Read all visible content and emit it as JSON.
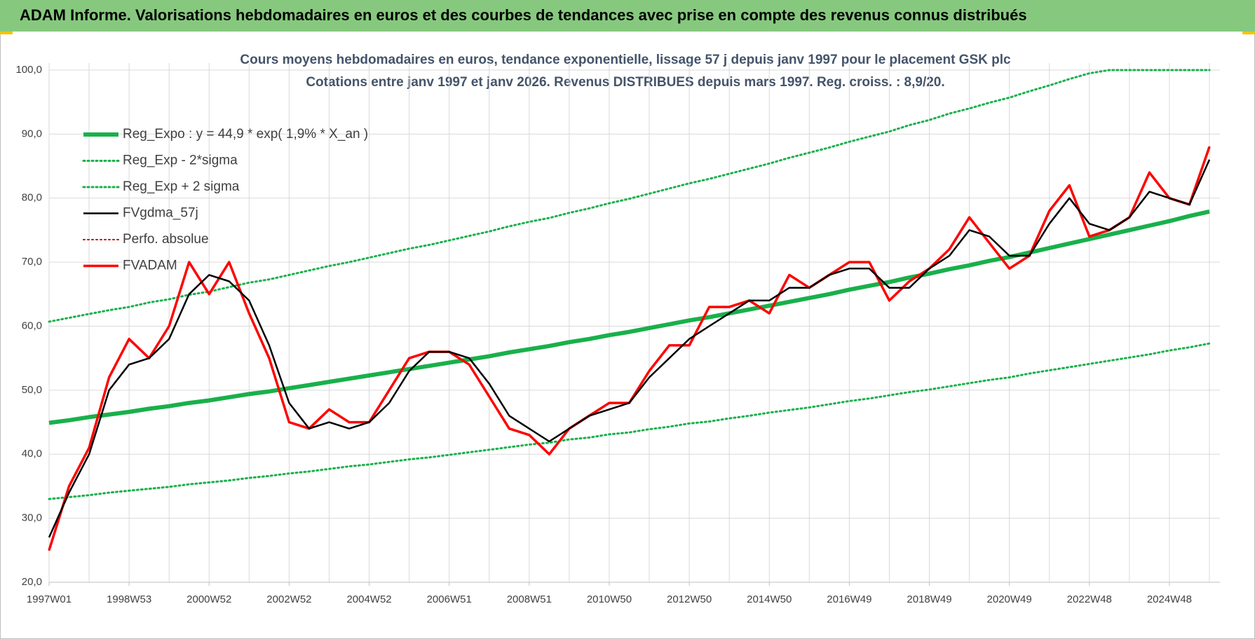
{
  "header": {
    "title": "ADAM Informe. Valorisations hebdomadaires en euros et des courbes de tendances avec prise en compte des revenus connus distribués"
  },
  "chart_data": {
    "type": "line",
    "title": "Cours moyens hebdomadaires en euros, tendance exponentielle, lissage 57 j depuis janv 1997  pour le  placement GSK plc",
    "subtitle": "Cotations entre janv 1997 et janv 2026. Revenus DISTRIBUES depuis mars 1997.  Reg. croiss. : 8,9/20.",
    "categories": [
      "1997W01",
      null,
      null,
      null,
      "1998W53",
      null,
      null,
      null,
      "2000W52",
      null,
      null,
      null,
      "2002W52",
      null,
      null,
      null,
      "2004W52",
      null,
      null,
      null,
      "2006W51",
      null,
      null,
      null,
      "2008W51",
      null,
      null,
      null,
      "2010W50",
      null,
      null,
      null,
      "2012W50",
      null,
      null,
      null,
      "2014W50",
      null,
      null,
      null,
      "2016W49",
      null,
      null,
      null,
      "2018W49",
      null,
      null,
      null,
      "2020W49",
      null,
      null,
      null,
      "2022W48",
      null,
      null,
      null,
      "2024W48",
      null,
      null
    ],
    "ylim": [
      20,
      100
    ],
    "yticks": [
      {
        "value": 20,
        "label": "20,0"
      },
      {
        "value": 30,
        "label": "30,0"
      },
      {
        "value": 40,
        "label": "40,0"
      },
      {
        "value": 50,
        "label": "50,0"
      },
      {
        "value": 60,
        "label": "60,0"
      },
      {
        "value": 70,
        "label": "70,0"
      },
      {
        "value": 80,
        "label": "80,0"
      },
      {
        "value": 90,
        "label": "90,0"
      },
      {
        "value": 100,
        "label": "100,0"
      }
    ],
    "grid": true,
    "legend": "top-left",
    "series": [
      {
        "name": "Reg_Expo : y = 44,9 * exp( 1,9% *  X_an )",
        "color": "#19b04b",
        "style": "solid",
        "values": [
          44.9,
          45.3,
          45.8,
          46.2,
          46.6,
          47.1,
          47.5,
          48.0,
          48.4,
          48.9,
          49.4,
          49.8,
          50.3,
          50.8,
          51.3,
          51.8,
          52.3,
          52.8,
          53.3,
          53.8,
          54.3,
          54.8,
          55.3,
          55.9,
          56.4,
          56.9,
          57.5,
          58.0,
          58.6,
          59.1,
          59.7,
          60.3,
          60.9,
          61.4,
          62.0,
          62.6,
          63.2,
          63.8,
          64.4,
          65.0,
          65.7,
          66.3,
          66.9,
          67.6,
          68.2,
          68.9,
          69.5,
          70.2,
          70.8,
          71.5,
          72.2,
          72.9,
          73.6,
          74.3,
          75.0,
          75.7,
          76.4,
          77.2,
          77.9
        ]
      },
      {
        "name": "Reg_Exp - 2*sigma",
        "color": "#19b04b",
        "style": "dotted",
        "values": [
          33.0,
          33.3,
          33.6,
          34.0,
          34.3,
          34.6,
          34.9,
          35.3,
          35.6,
          35.9,
          36.3,
          36.6,
          37.0,
          37.3,
          37.7,
          38.1,
          38.4,
          38.8,
          39.2,
          39.5,
          39.9,
          40.3,
          40.7,
          41.1,
          41.5,
          41.8,
          42.3,
          42.6,
          43.1,
          43.4,
          43.9,
          44.3,
          44.8,
          45.1,
          45.6,
          46.0,
          46.5,
          46.9,
          47.3,
          47.8,
          48.3,
          48.7,
          49.2,
          49.7,
          50.1,
          50.6,
          51.1,
          51.6,
          52.0,
          52.6,
          53.1,
          53.6,
          54.1,
          54.6,
          55.1,
          55.6,
          56.2,
          56.7,
          57.3
        ]
      },
      {
        "name": "Reg_Exp + 2 sigma",
        "color": "#19b04b",
        "style": "dotted",
        "values": [
          60.7,
          61.3,
          61.9,
          62.5,
          63.0,
          63.7,
          64.2,
          64.9,
          65.4,
          66.1,
          66.8,
          67.3,
          68.0,
          68.7,
          69.4,
          70.0,
          70.7,
          71.4,
          72.1,
          72.7,
          73.4,
          74.1,
          74.8,
          75.6,
          76.3,
          76.9,
          77.7,
          78.4,
          79.2,
          79.9,
          80.7,
          81.5,
          82.3,
          83.0,
          83.8,
          84.6,
          85.4,
          86.3,
          87.1,
          87.9,
          88.8,
          89.6,
          90.4,
          91.4,
          92.2,
          93.2,
          94.0,
          94.9,
          95.7,
          96.7,
          97.6,
          98.6,
          99.5,
          100,
          100,
          100,
          100,
          100,
          100
        ]
      },
      {
        "name": "FVgdma_57j",
        "color": "#000000",
        "style": "solid",
        "values": [
          27,
          34,
          40,
          50,
          54,
          55,
          58,
          65,
          68,
          67,
          64,
          57,
          48,
          44,
          45,
          44,
          45,
          48,
          53,
          56,
          56,
          55,
          51,
          46,
          44,
          42,
          44,
          46,
          47,
          48,
          52,
          55,
          58,
          60,
          62,
          64,
          64,
          66,
          66,
          68,
          69,
          69,
          66,
          66,
          69,
          71,
          75,
          74,
          71,
          71,
          76,
          80,
          76,
          75,
          77,
          81,
          80,
          79,
          86
        ]
      },
      {
        "name": "Perfo. absolue",
        "color": "#c00000",
        "style": "dotted",
        "values": [
          25,
          35,
          41,
          52,
          58,
          55,
          60,
          70,
          65,
          70,
          62,
          55,
          45,
          44,
          47,
          45,
          45,
          50,
          55,
          56,
          56,
          54,
          49,
          44,
          43,
          40,
          44,
          46,
          48,
          48,
          53,
          57,
          57,
          63,
          63,
          64,
          62,
          68,
          66,
          68,
          70,
          70,
          64,
          67,
          69,
          72,
          77,
          73,
          69,
          71,
          78,
          82,
          74,
          75,
          77,
          84,
          80,
          79,
          88
        ]
      },
      {
        "name": "FVADAM",
        "color": "#ff0000",
        "style": "solid",
        "values": [
          25,
          35,
          41,
          52,
          58,
          55,
          60,
          70,
          65,
          70,
          62,
          55,
          45,
          44,
          47,
          45,
          45,
          50,
          55,
          56,
          56,
          54,
          49,
          44,
          43,
          40,
          44,
          46,
          48,
          48,
          53,
          57,
          57,
          63,
          63,
          64,
          62,
          68,
          66,
          68,
          70,
          70,
          64,
          67,
          69,
          72,
          77,
          73,
          69,
          71,
          78,
          82,
          74,
          75,
          77,
          84,
          80,
          79,
          88
        ]
      }
    ]
  }
}
